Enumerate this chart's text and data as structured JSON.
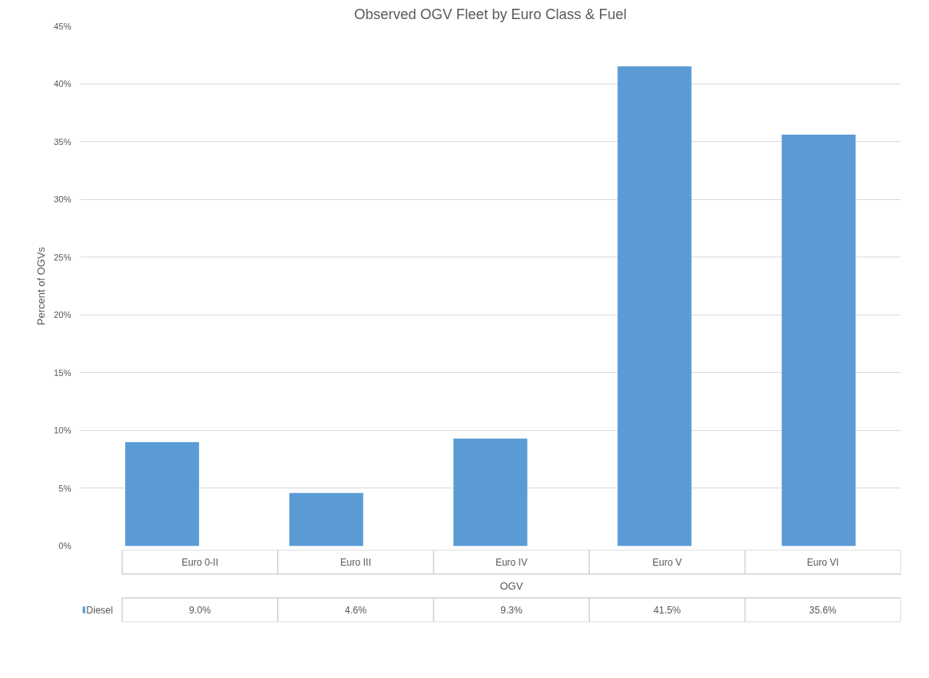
{
  "chart_data": {
    "type": "bar",
    "title": "Observed OGV Fleet by Euro Class & Fuel",
    "ylabel": "Percent of OGVs",
    "xlabel": "OGV",
    "categories": [
      "Euro 0-II",
      "Euro III",
      "Euro IV",
      "Euro V",
      "Euro VI"
    ],
    "series": [
      {
        "name": "Diesel",
        "color": "#5b9bd5",
        "values": [
          9.0,
          4.6,
          9.3,
          41.5,
          35.6
        ],
        "value_labels": [
          "9.0%",
          "4.6%",
          "9.3%",
          "41.5%",
          "35.6%"
        ]
      }
    ],
    "ylim": [
      0,
      45
    ],
    "yticks": [
      {
        "value": 0,
        "label": "0%"
      },
      {
        "value": 5,
        "label": "5%"
      },
      {
        "value": 10,
        "label": "10%"
      },
      {
        "value": 15,
        "label": "15%"
      },
      {
        "value": 20,
        "label": "20%"
      },
      {
        "value": 25,
        "label": "25%"
      },
      {
        "value": 30,
        "label": "30%"
      },
      {
        "value": 35,
        "label": "35%"
      },
      {
        "value": 40,
        "label": "40%"
      },
      {
        "value": 45,
        "label": "45%"
      }
    ],
    "grid": "y",
    "legend": "bottom"
  }
}
